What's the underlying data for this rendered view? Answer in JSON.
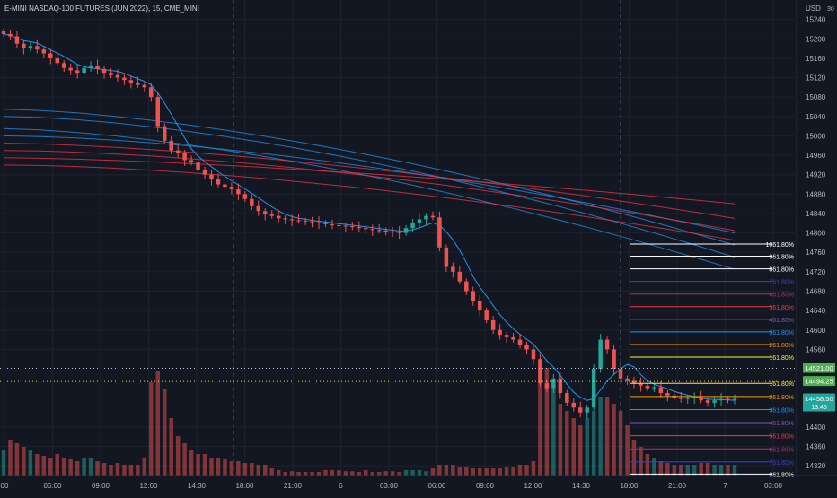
{
  "header": {
    "symbol_title": "E-MINI NASDAQ-100 FUTURES (JUN 2022), 15, CME_MINI",
    "currency": "USD",
    "scale_hint": "30"
  },
  "colors": {
    "background": "#131722",
    "grid": "#1e222d",
    "up": "#26a69a",
    "down": "#ef5350",
    "text": "#b2b5be",
    "crosshair": "#4a5a7a"
  },
  "chart_data": {
    "type": "candlestick",
    "ylim": [
      14300,
      15280
    ],
    "y_ticks": [
      15240,
      15200,
      15160,
      15120,
      15080,
      15040,
      15000,
      14960,
      14920,
      14880,
      14840,
      14800,
      14760,
      14720,
      14680,
      14640,
      14600,
      14560,
      14400,
      14360,
      14320
    ],
    "x_ticks": [
      "00",
      "06:00",
      "09:00",
      "12:00",
      "14:30",
      "18:00",
      "21:00",
      "6",
      "03:00",
      "06:00",
      "09:00",
      "12:00",
      "14:30",
      "18:00",
      "21:00",
      "7",
      "03:00"
    ],
    "close_series": [
      15210,
      15205,
      15190,
      15180,
      15185,
      15178,
      15170,
      15160,
      15150,
      15140,
      15135,
      15130,
      15140,
      15145,
      15138,
      15130,
      15125,
      15120,
      15115,
      15110,
      15105,
      15100,
      15080,
      15020,
      14990,
      14970,
      14965,
      14950,
      14945,
      14930,
      14920,
      14910,
      14900,
      14895,
      14890,
      14880,
      14870,
      14855,
      14845,
      14838,
      14835,
      14830,
      14828,
      14826,
      14825,
      14824,
      14822,
      14820,
      14818,
      14816,
      14815,
      14814,
      14812,
      14810,
      14808,
      14806,
      14805,
      14803,
      14802,
      14800,
      14810,
      14820,
      14828,
      14835,
      14832,
      14770,
      14730,
      14720,
      14700,
      14680,
      14660,
      14640,
      14620,
      14600,
      14590,
      14585,
      14580,
      14570,
      14560,
      14540,
      14490,
      14480,
      14500,
      14470,
      14450,
      14440,
      14430,
      14440,
      14520,
      14580,
      14560,
      14520,
      14500,
      14495,
      14490,
      14485,
      14480,
      14482,
      14470,
      14465,
      14460,
      14458,
      14460,
      14462,
      14455,
      14450,
      14455,
      14458,
      14455,
      14458
    ],
    "volume_series": [
      0.7,
      1.0,
      0.9,
      0.8,
      0.7,
      0.6,
      0.55,
      0.5,
      0.6,
      0.5,
      0.45,
      0.4,
      0.5,
      0.5,
      0.4,
      0.35,
      0.3,
      0.35,
      0.3,
      0.3,
      0.3,
      0.5,
      2.6,
      2.9,
      2.4,
      1.6,
      1.1,
      0.9,
      0.7,
      0.6,
      0.6,
      0.5,
      0.5,
      0.45,
      0.4,
      0.4,
      0.35,
      0.35,
      0.3,
      0.3,
      0.2,
      0.15,
      0.1,
      0.12,
      0.1,
      0.1,
      0.1,
      0.1,
      0.15,
      0.15,
      0.15,
      0.12,
      0.12,
      0.1,
      0.15,
      0.1,
      0.1,
      0.12,
      0.12,
      0.1,
      0.15,
      0.15,
      0.15,
      0.12,
      0.2,
      0.3,
      0.3,
      0.3,
      0.25,
      0.25,
      0.2,
      0.2,
      0.2,
      0.2,
      0.2,
      0.25,
      0.25,
      0.3,
      0.3,
      0.4,
      3.2,
      3.0,
      2.4,
      2.0,
      1.8,
      1.6,
      1.4,
      1.6,
      1.8,
      2.2,
      2.2,
      2.0,
      1.8,
      1.4,
      1.0,
      0.8,
      0.6,
      0.5,
      0.4,
      0.35,
      0.3,
      0.3,
      0.3,
      0.3,
      0.35,
      0.35,
      0.3,
      0.3,
      0.3,
      0.3
    ],
    "fib_levels_upper": [
      {
        "label": "1061.80%",
        "price": 14777,
        "color": "#ffffff"
      },
      {
        "label": "961.80%",
        "price": 14752,
        "color": "#ffffff"
      },
      {
        "label": "861.80%",
        "price": 14726,
        "color": "#ffffff"
      },
      {
        "label": "761.80%",
        "price": 14700,
        "color": "#3f3fd6"
      },
      {
        "label": "661.80%",
        "price": 14674,
        "color": "#b0306f"
      },
      {
        "label": "561.80%",
        "price": 14648,
        "color": "#f23645"
      },
      {
        "label": "461.80%",
        "price": 14622,
        "color": "#7e57c2"
      },
      {
        "label": "361.80%",
        "price": 14596,
        "color": "#2196f3"
      },
      {
        "label": "261.80%",
        "price": 14570,
        "color": "#ff9800"
      },
      {
        "label": "161.80%",
        "price": 14544,
        "color": "#ffeb3b"
      }
    ],
    "fib_levels_lower": [
      {
        "label": "161.80%",
        "price": 14490,
        "color": "#ffeb3b"
      },
      {
        "label": "261.80%",
        "price": 14463,
        "color": "#ff9800"
      },
      {
        "label": "361.80%",
        "price": 14436,
        "color": "#2196f3"
      },
      {
        "label": "461.80%",
        "price": 14409,
        "color": "#7e57c2"
      },
      {
        "label": "561.80%",
        "price": 14382,
        "color": "#f23645"
      },
      {
        "label": "661.80%",
        "price": 14355,
        "color": "#b0306f"
      },
      {
        "label": "761.80%",
        "price": 14328,
        "color": "#3f3fd6"
      },
      {
        "label": "861.80%",
        "price": 14303,
        "color": "#ffffff"
      }
    ],
    "price_labels": [
      {
        "text": "14521.00",
        "price": 14521,
        "color": "#4caf50",
        "dotted_color": "#d1d4dc"
      },
      {
        "text": "14494.25",
        "price": 14494,
        "color": "#4caf50",
        "dotted_color": "#ffeb3b"
      },
      {
        "text": "14458.50",
        "sub": "13:46",
        "price": 14458,
        "color": "#26a69a"
      }
    ]
  }
}
